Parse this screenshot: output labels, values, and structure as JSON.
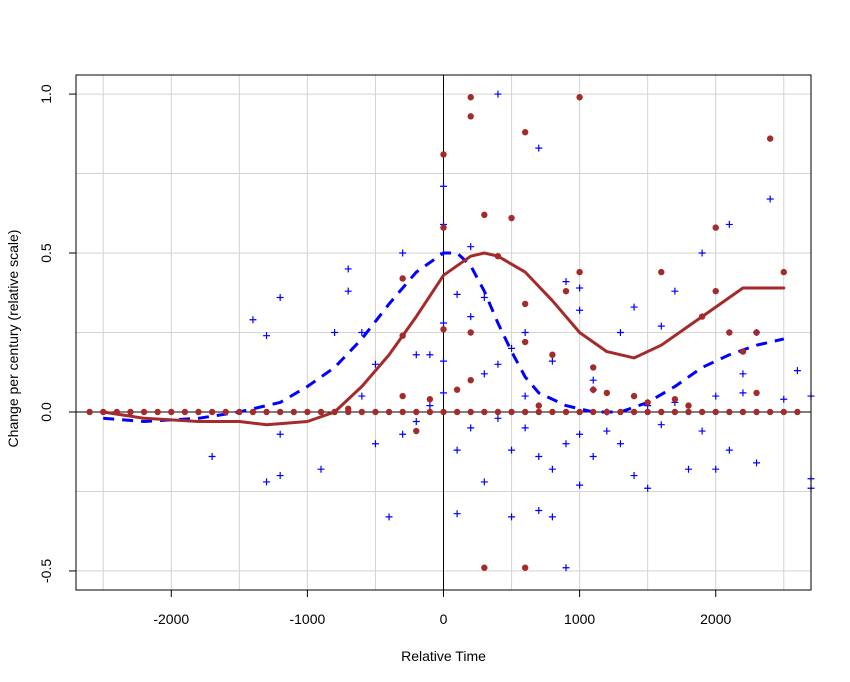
{
  "chart_data": {
    "type": "scatter",
    "title": "",
    "xlabel": "Relative Time",
    "ylabel": "Change per century (relative scale)",
    "xlim": [
      -2700,
      2700
    ],
    "ylim": [
      -0.56,
      1.06
    ],
    "x_ticks": [
      -2000,
      -1000,
      0,
      1000,
      2000
    ],
    "x_tick_labels": [
      "-2000",
      "-1000",
      "0",
      "1000",
      "2000"
    ],
    "y_ticks": [
      -0.5,
      0.0,
      0.5,
      1.0
    ],
    "y_tick_labels": [
      "-0.5",
      "0.0",
      "0.5",
      "1.0"
    ],
    "grid": true,
    "reference_lines": {
      "vertical_x": 0,
      "horizontal_y": 0
    },
    "colors": {
      "blue_series": "#0000ff",
      "red_series": "#a52a2a",
      "grid": "#d3d3d3"
    },
    "series": [
      {
        "kind": "points",
        "marker": "plus",
        "color": "#0000ff",
        "points": [
          [
            -1400,
            0.29
          ],
          [
            -1300,
            0.24
          ],
          [
            -1200,
            0.36
          ],
          [
            -1300,
            -0.22
          ],
          [
            -1200,
            -0.2
          ],
          [
            -1700,
            -0.14
          ],
          [
            -1200,
            -0.07
          ],
          [
            -900,
            -0.18
          ],
          [
            -800,
            0.25
          ],
          [
            -700,
            0.45
          ],
          [
            -700,
            0.38
          ],
          [
            -600,
            0.25
          ],
          [
            -500,
            0.15
          ],
          [
            -500,
            -0.1
          ],
          [
            -400,
            -0.33
          ],
          [
            -300,
            0.5
          ],
          [
            -300,
            -0.07
          ],
          [
            -200,
            0.18
          ],
          [
            -100,
            0.18
          ],
          [
            -100,
            0.02
          ],
          [
            0,
            0.71
          ],
          [
            0,
            0.59
          ],
          [
            0,
            0.5
          ],
          [
            0,
            0.28
          ],
          [
            0,
            0.16
          ],
          [
            0,
            0.06
          ],
          [
            100,
            0.37
          ],
          [
            100,
            -0.12
          ],
          [
            100,
            -0.32
          ],
          [
            200,
            0.52
          ],
          [
            200,
            0.3
          ],
          [
            200,
            -0.05
          ],
          [
            300,
            0.36
          ],
          [
            300,
            -0.22
          ],
          [
            400,
            1.0
          ],
          [
            400,
            0.15
          ],
          [
            400,
            -0.02
          ],
          [
            500,
            0.2
          ],
          [
            500,
            -0.33
          ],
          [
            500,
            -0.12
          ],
          [
            600,
            0.25
          ],
          [
            600,
            0.05
          ],
          [
            700,
            0.83
          ],
          [
            700,
            -0.14
          ],
          [
            700,
            -0.31
          ],
          [
            800,
            0.16
          ],
          [
            800,
            -0.18
          ],
          [
            800,
            -0.33
          ],
          [
            900,
            0.41
          ],
          [
            900,
            -0.1
          ],
          [
            900,
            -0.49
          ],
          [
            1000,
            0.39
          ],
          [
            1000,
            0.32
          ],
          [
            1000,
            -0.07
          ],
          [
            1000,
            -0.23
          ],
          [
            1100,
            0.07
          ],
          [
            1100,
            -0.14
          ],
          [
            1200,
            0.0
          ],
          [
            1200,
            -0.06
          ],
          [
            1300,
            0.25
          ],
          [
            1300,
            -0.1
          ],
          [
            1400,
            0.33
          ],
          [
            1400,
            -0.2
          ],
          [
            1500,
            0.02
          ],
          [
            1500,
            -0.24
          ],
          [
            1600,
            0.27
          ],
          [
            1600,
            -0.04
          ],
          [
            1700,
            0.38
          ],
          [
            1800,
            -0.18
          ],
          [
            1900,
            0.5
          ],
          [
            1900,
            -0.06
          ],
          [
            2000,
            -0.18
          ],
          [
            2000,
            0.05
          ],
          [
            2100,
            0.59
          ],
          [
            2100,
            -0.12
          ],
          [
            2200,
            0.06
          ],
          [
            2300,
            0.25
          ],
          [
            2300,
            -0.16
          ],
          [
            2400,
            0.67
          ],
          [
            2500,
            0.04
          ],
          [
            2600,
            0.13
          ],
          [
            2700,
            -0.21
          ],
          [
            2700,
            -0.24
          ],
          [
            2700,
            0.05
          ],
          [
            -600,
            0.05
          ],
          [
            -200,
            -0.03
          ],
          [
            300,
            0.12
          ],
          [
            600,
            -0.05
          ],
          [
            1100,
            0.1
          ],
          [
            1700,
            0.03
          ],
          [
            2200,
            0.12
          ]
        ]
      },
      {
        "kind": "points",
        "marker": "dot",
        "color": "#a52a2a",
        "points": [
          [
            -2600,
            0
          ],
          [
            -2500,
            0
          ],
          [
            -2400,
            0
          ],
          [
            -2300,
            0
          ],
          [
            -2200,
            0
          ],
          [
            -2100,
            0
          ],
          [
            -2000,
            0
          ],
          [
            -1900,
            0
          ],
          [
            -1800,
            0
          ],
          [
            -1700,
            0
          ],
          [
            -1600,
            0
          ],
          [
            -1500,
            0
          ],
          [
            -1400,
            0
          ],
          [
            -1300,
            0
          ],
          [
            -1200,
            0
          ],
          [
            -1100,
            0
          ],
          [
            -1000,
            0
          ],
          [
            -900,
            0
          ],
          [
            -800,
            0
          ],
          [
            -700,
            0
          ],
          [
            -600,
            0
          ],
          [
            -500,
            0
          ],
          [
            -400,
            0
          ],
          [
            -300,
            0
          ],
          [
            -200,
            0
          ],
          [
            -100,
            0
          ],
          [
            0,
            0
          ],
          [
            100,
            0
          ],
          [
            200,
            0
          ],
          [
            300,
            0
          ],
          [
            400,
            0
          ],
          [
            500,
            0
          ],
          [
            600,
            0
          ],
          [
            700,
            0
          ],
          [
            800,
            0
          ],
          [
            900,
            0
          ],
          [
            1000,
            0
          ],
          [
            1100,
            0
          ],
          [
            1200,
            0
          ],
          [
            1300,
            0
          ],
          [
            1400,
            0
          ],
          [
            1500,
            0
          ],
          [
            1600,
            0
          ],
          [
            1700,
            0
          ],
          [
            1800,
            0
          ],
          [
            1900,
            0
          ],
          [
            2000,
            0
          ],
          [
            2100,
            0
          ],
          [
            2200,
            0
          ],
          [
            2300,
            0
          ],
          [
            2400,
            0
          ],
          [
            2500,
            0
          ],
          [
            2600,
            0
          ],
          [
            -300,
            0.42
          ],
          [
            -300,
            0.24
          ],
          [
            -300,
            0.05
          ],
          [
            -200,
            -0.06
          ],
          [
            0,
            0.81
          ],
          [
            0,
            0.58
          ],
          [
            0,
            0.26
          ],
          [
            200,
            0.99
          ],
          [
            200,
            0.93
          ],
          [
            200,
            0.25
          ],
          [
            200,
            0.1
          ],
          [
            300,
            0.62
          ],
          [
            300,
            -0.49
          ],
          [
            400,
            0.49
          ],
          [
            500,
            0.61
          ],
          [
            600,
            0.88
          ],
          [
            600,
            0.34
          ],
          [
            600,
            0.22
          ],
          [
            600,
            -0.49
          ],
          [
            800,
            0.18
          ],
          [
            900,
            0.38
          ],
          [
            1000,
            0.99
          ],
          [
            1000,
            0.44
          ],
          [
            1100,
            0.14
          ],
          [
            1200,
            0.06
          ],
          [
            1400,
            0.05
          ],
          [
            1600,
            0.44
          ],
          [
            1700,
            0.04
          ],
          [
            1900,
            0.3
          ],
          [
            2000,
            0.58
          ],
          [
            2000,
            0.38
          ],
          [
            2100,
            0.25
          ],
          [
            2200,
            0.19
          ],
          [
            2300,
            0.25
          ],
          [
            2300,
            0.06
          ],
          [
            2400,
            0.86
          ],
          [
            2500,
            0.44
          ],
          [
            -700,
            0.01
          ],
          [
            -100,
            0.04
          ],
          [
            100,
            0.07
          ],
          [
            700,
            0.02
          ],
          [
            1100,
            0.07
          ],
          [
            1500,
            0.03
          ],
          [
            1800,
            0.02
          ]
        ]
      },
      {
        "kind": "line",
        "style": "dashed",
        "color": "#0000ff",
        "points": [
          [
            -2500,
            -0.02
          ],
          [
            -2200,
            -0.03
          ],
          [
            -1800,
            -0.02
          ],
          [
            -1500,
            0.0
          ],
          [
            -1200,
            0.03
          ],
          [
            -1000,
            0.08
          ],
          [
            -800,
            0.14
          ],
          [
            -600,
            0.23
          ],
          [
            -400,
            0.34
          ],
          [
            -200,
            0.44
          ],
          [
            0,
            0.5
          ],
          [
            100,
            0.5
          ],
          [
            200,
            0.46
          ],
          [
            300,
            0.38
          ],
          [
            400,
            0.28
          ],
          [
            500,
            0.19
          ],
          [
            600,
            0.11
          ],
          [
            700,
            0.06
          ],
          [
            900,
            0.02
          ],
          [
            1100,
            0.0
          ],
          [
            1300,
            0.0
          ],
          [
            1500,
            0.03
          ],
          [
            1700,
            0.08
          ],
          [
            1900,
            0.14
          ],
          [
            2100,
            0.18
          ],
          [
            2300,
            0.21
          ],
          [
            2500,
            0.23
          ]
        ]
      },
      {
        "kind": "line",
        "style": "solid",
        "color": "#a52a2a",
        "points": [
          [
            -2500,
            0.0
          ],
          [
            -2200,
            -0.02
          ],
          [
            -1800,
            -0.03
          ],
          [
            -1500,
            -0.03
          ],
          [
            -1300,
            -0.04
          ],
          [
            -1000,
            -0.03
          ],
          [
            -800,
            0.0
          ],
          [
            -600,
            0.08
          ],
          [
            -400,
            0.18
          ],
          [
            -200,
            0.3
          ],
          [
            0,
            0.43
          ],
          [
            200,
            0.49
          ],
          [
            300,
            0.5
          ],
          [
            400,
            0.49
          ],
          [
            600,
            0.44
          ],
          [
            800,
            0.35
          ],
          [
            1000,
            0.25
          ],
          [
            1200,
            0.19
          ],
          [
            1400,
            0.17
          ],
          [
            1600,
            0.21
          ],
          [
            1800,
            0.27
          ],
          [
            2000,
            0.33
          ],
          [
            2200,
            0.39
          ],
          [
            2500,
            0.39
          ]
        ]
      }
    ]
  }
}
